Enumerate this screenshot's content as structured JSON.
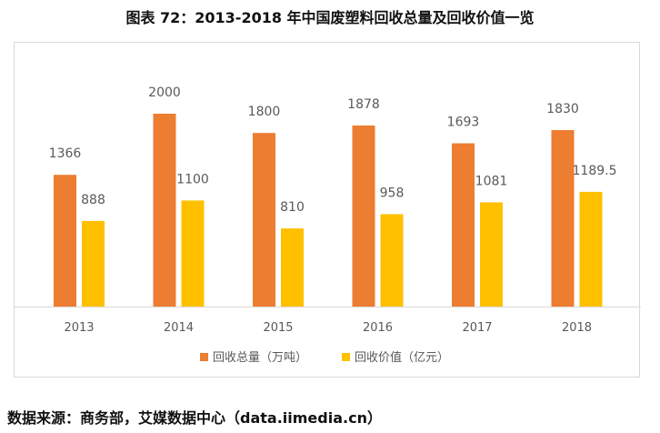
{
  "title": "图表 72：2013-2018 年中国废塑料回收总量及回收价值一览",
  "source": "数据来源：商务部，艾媒数据中心（data.iimedia.cn）",
  "colors": {
    "series1": "#ed7d31",
    "series2": "#ffc000",
    "axis": "#d9d9d9",
    "label": "#595959"
  },
  "chart_data": {
    "type": "bar",
    "title": "图表 72：2013-2018 年中国废塑料回收总量及回收价值一览",
    "categories": [
      "2013",
      "2014",
      "2015",
      "2016",
      "2017",
      "2018"
    ],
    "series": [
      {
        "name": "回收总量（万吨）",
        "values": [
          1366,
          2000,
          1800,
          1878,
          1693,
          1830
        ],
        "labels": [
          "1366",
          "2000",
          "1800",
          "1878",
          "1693",
          "1830"
        ]
      },
      {
        "name": "回收价值（亿元）",
        "values": [
          888,
          1100,
          810,
          958,
          1081,
          1189.5
        ],
        "labels": [
          "888",
          "1100",
          "810",
          "958",
          "1081",
          "1189.5"
        ]
      }
    ],
    "legend": "bottom",
    "xlabel": "",
    "ylabel": "",
    "grid": false
  }
}
